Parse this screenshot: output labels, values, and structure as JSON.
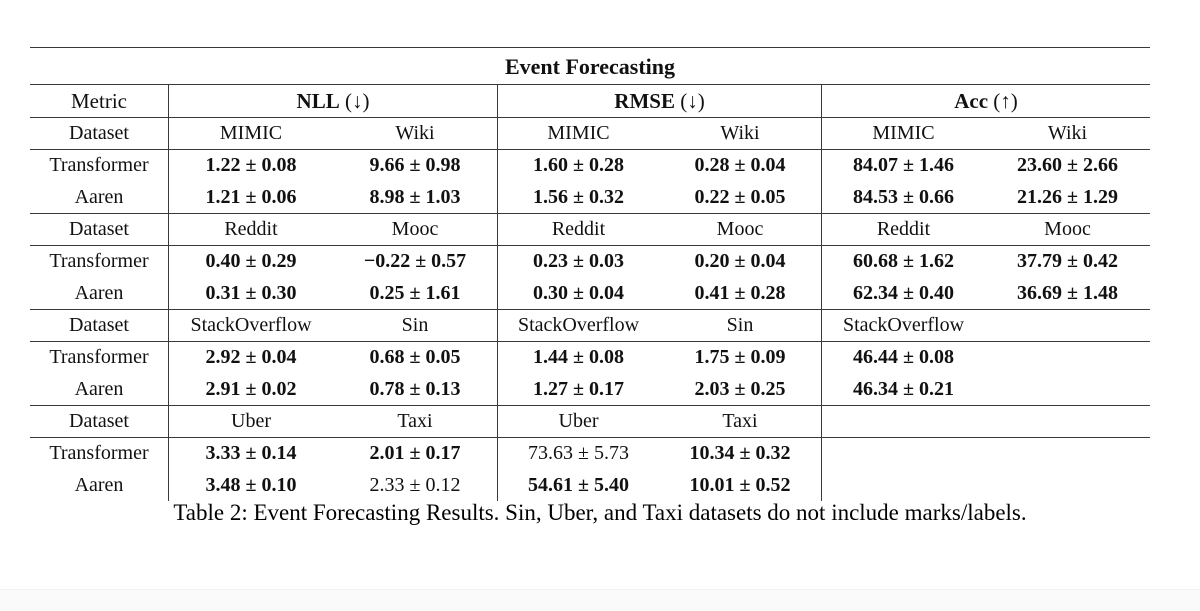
{
  "page": {
    "caption": "Table 2: Event Forecasting Results. Sin, Uber, and Taxi datasets do not include marks/labels.",
    "background": "#ffffff",
    "bottom_band_color": "#fafafa",
    "text_color": "#111111",
    "rule_color": "#3a3a3a"
  },
  "table": {
    "title": "Event Forecasting",
    "metric_header": "Metric",
    "dataset_label": "Dataset",
    "groups": [
      {
        "name": "NLL",
        "direction": "(↓)"
      },
      {
        "name": "RMSE",
        "direction": "(↓)"
      },
      {
        "name": "Acc",
        "direction": "(↑)"
      }
    ],
    "blocks": [
      {
        "dataset_row": [
          "MIMIC",
          "Wiki",
          "MIMIC",
          "Wiki",
          "MIMIC",
          "Wiki"
        ],
        "rows": [
          {
            "label": "Transformer",
            "cells": [
              {
                "text": "1.22 ± 0.08",
                "bold": true
              },
              {
                "text": "9.66 ± 0.98",
                "bold": true
              },
              {
                "text": "1.60 ± 0.28",
                "bold": true
              },
              {
                "text": "0.28 ± 0.04",
                "bold": true
              },
              {
                "text": "84.07 ± 1.46",
                "bold": true
              },
              {
                "text": "23.60 ± 2.66",
                "bold": true
              }
            ]
          },
          {
            "label": "Aaren",
            "cells": [
              {
                "text": "1.21 ± 0.06",
                "bold": true
              },
              {
                "text": "8.98 ± 1.03",
                "bold": true
              },
              {
                "text": "1.56 ± 0.32",
                "bold": true
              },
              {
                "text": "0.22 ± 0.05",
                "bold": true
              },
              {
                "text": "84.53 ± 0.66",
                "bold": true
              },
              {
                "text": "21.26 ± 1.29",
                "bold": true
              }
            ]
          }
        ]
      },
      {
        "dataset_row": [
          "Reddit",
          "Mooc",
          "Reddit",
          "Mooc",
          "Reddit",
          "Mooc"
        ],
        "rows": [
          {
            "label": "Transformer",
            "cells": [
              {
                "text": "0.40 ± 0.29",
                "bold": true
              },
              {
                "text": "−0.22 ± 0.57",
                "bold": true
              },
              {
                "text": "0.23 ± 0.03",
                "bold": true
              },
              {
                "text": "0.20 ± 0.04",
                "bold": true
              },
              {
                "text": "60.68 ± 1.62",
                "bold": true
              },
              {
                "text": "37.79 ± 0.42",
                "bold": true
              }
            ]
          },
          {
            "label": "Aaren",
            "cells": [
              {
                "text": "0.31 ± 0.30",
                "bold": true
              },
              {
                "text": "0.25 ± 1.61",
                "bold": true
              },
              {
                "text": "0.30 ± 0.04",
                "bold": true
              },
              {
                "text": "0.41 ± 0.28",
                "bold": true
              },
              {
                "text": "62.34 ± 0.40",
                "bold": true
              },
              {
                "text": "36.69 ± 1.48",
                "bold": true
              }
            ]
          }
        ]
      },
      {
        "dataset_row": [
          "StackOverflow",
          "Sin",
          "StackOverflow",
          "Sin",
          "StackOverflow",
          ""
        ],
        "rows": [
          {
            "label": "Transformer",
            "cells": [
              {
                "text": "2.92 ± 0.04",
                "bold": true
              },
              {
                "text": "0.68 ± 0.05",
                "bold": true
              },
              {
                "text": "1.44 ± 0.08",
                "bold": true
              },
              {
                "text": "1.75 ± 0.09",
                "bold": true
              },
              {
                "text": "46.44 ± 0.08",
                "bold": true
              },
              {
                "text": "",
                "bold": false
              }
            ]
          },
          {
            "label": "Aaren",
            "cells": [
              {
                "text": "2.91 ± 0.02",
                "bold": true
              },
              {
                "text": "0.78 ± 0.13",
                "bold": true
              },
              {
                "text": "1.27 ± 0.17",
                "bold": true
              },
              {
                "text": "2.03 ± 0.25",
                "bold": true
              },
              {
                "text": "46.34 ± 0.21",
                "bold": true
              },
              {
                "text": "",
                "bold": false
              }
            ]
          }
        ]
      },
      {
        "dataset_row": [
          "Uber",
          "Taxi",
          "Uber",
          "Taxi",
          "",
          ""
        ],
        "rows": [
          {
            "label": "Transformer",
            "cells": [
              {
                "text": "3.33 ± 0.14",
                "bold": true
              },
              {
                "text": "2.01 ± 0.17",
                "bold": true
              },
              {
                "text": "73.63 ± 5.73",
                "bold": false
              },
              {
                "text": "10.34 ± 0.32",
                "bold": true
              },
              {
                "text": "",
                "bold": false
              },
              {
                "text": "",
                "bold": false
              }
            ]
          },
          {
            "label": "Aaren",
            "cells": [
              {
                "text": "3.48 ± 0.10",
                "bold": true
              },
              {
                "text": "2.33 ± 0.12",
                "bold": false
              },
              {
                "text": "54.61 ± 5.40",
                "bold": true
              },
              {
                "text": "10.01 ± 0.52",
                "bold": true
              },
              {
                "text": "",
                "bold": false
              },
              {
                "text": "",
                "bold": false
              }
            ]
          }
        ]
      }
    ]
  }
}
